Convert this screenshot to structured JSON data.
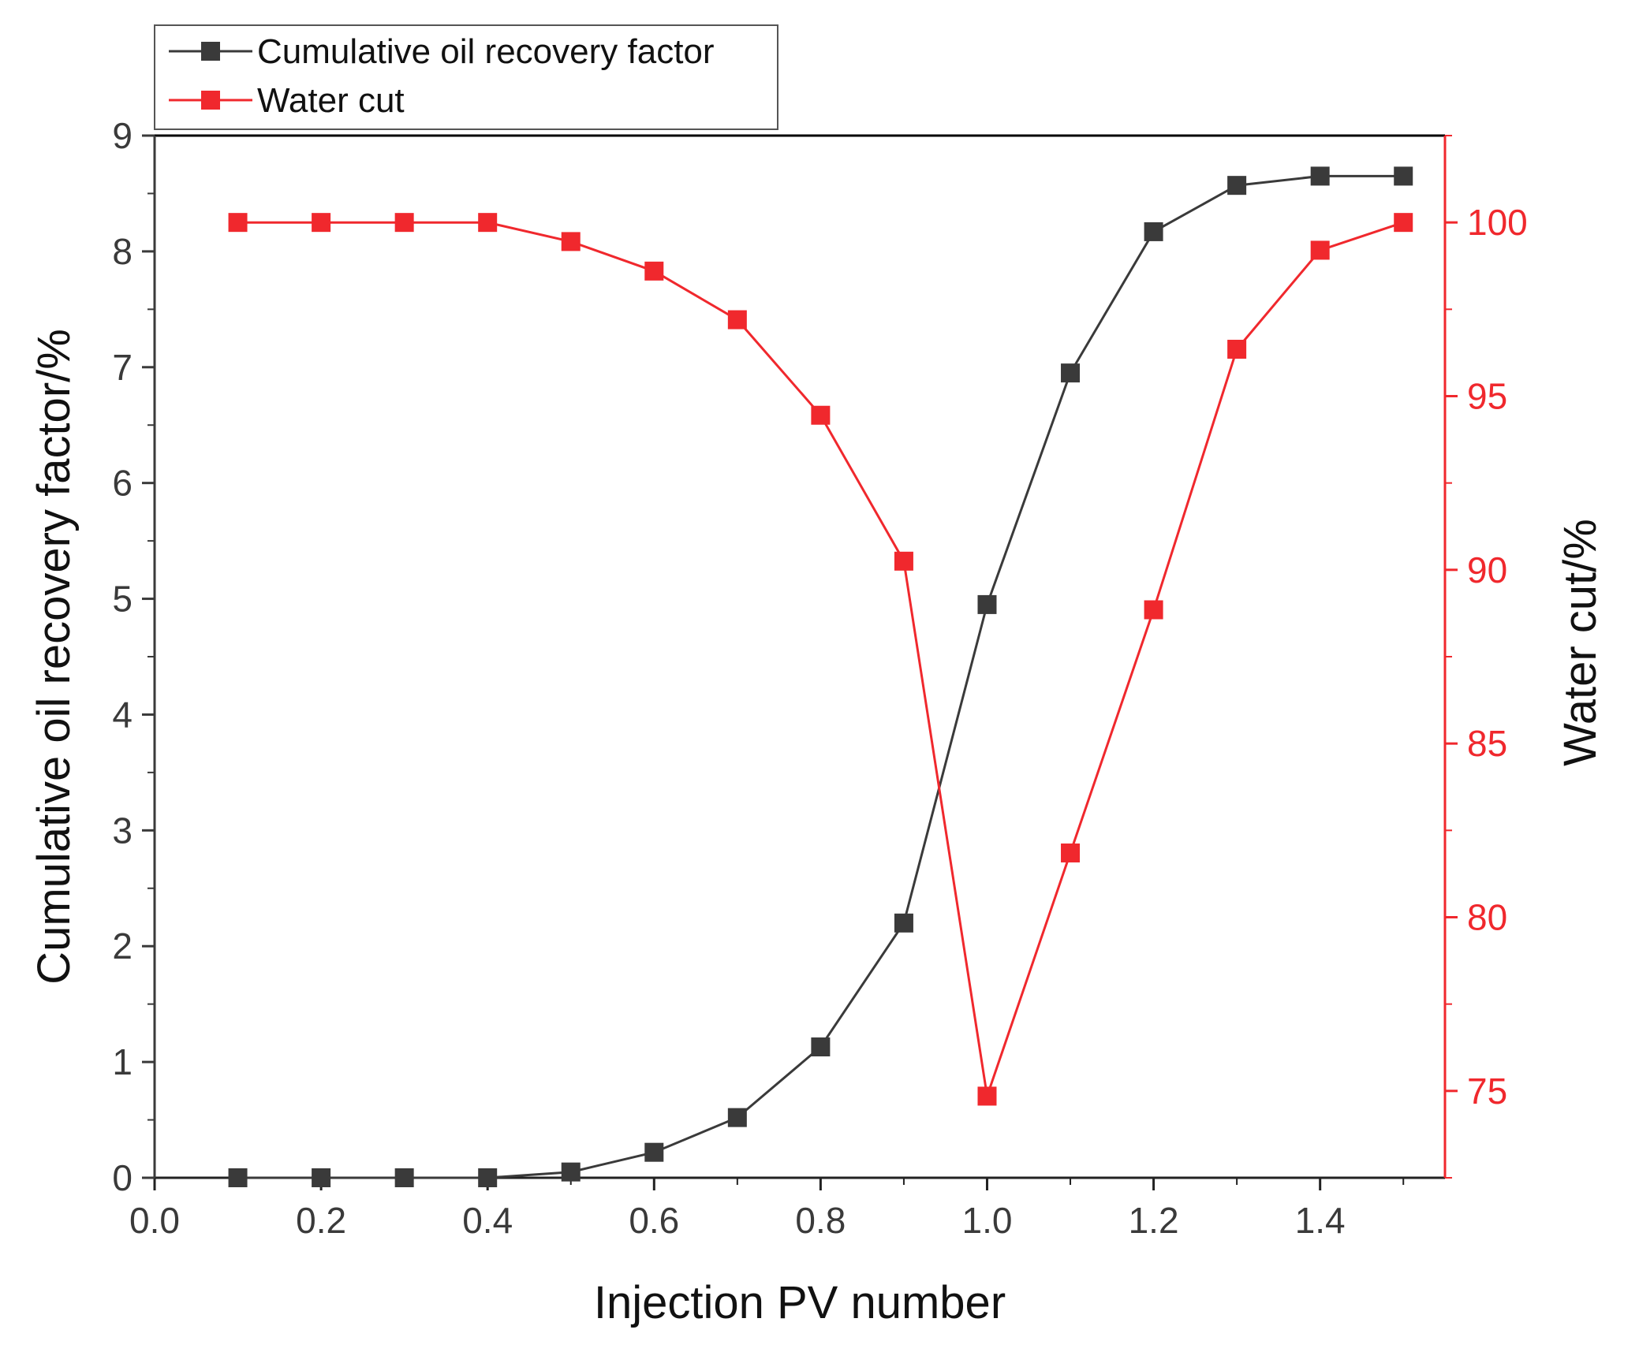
{
  "chart_data": {
    "type": "line",
    "title": "",
    "xlabel": "Injection PV number",
    "ylabel": "Cumulative oil recovery factor/%",
    "y2label": "Water cut/%",
    "xlim": [
      0.0,
      1.55
    ],
    "ylim": [
      0,
      9
    ],
    "y2lim": [
      72.5,
      102.5
    ],
    "xticks": [
      "0.0",
      "0.2",
      "0.4",
      "0.6",
      "0.8",
      "1.0",
      "1.2",
      "1.4"
    ],
    "yticks": [
      "0",
      "1",
      "2",
      "3",
      "4",
      "5",
      "6",
      "7",
      "8",
      "9"
    ],
    "y2ticks": [
      "75",
      "80",
      "85",
      "90",
      "95",
      "100"
    ],
    "x": [
      0.1,
      0.2,
      0.3,
      0.4,
      0.5,
      0.6,
      0.7,
      0.8,
      0.9,
      1.0,
      1.1,
      1.2,
      1.3,
      1.4,
      1.5
    ],
    "series": [
      {
        "name": "Cumulative oil recovery factor",
        "axis": "left",
        "color": "#3a3a3a",
        "values": [
          0.0,
          0.0,
          0.0,
          0.0,
          0.05,
          0.22,
          0.52,
          1.13,
          2.2,
          4.95,
          6.95,
          8.17,
          8.57,
          8.65,
          8.65
        ]
      },
      {
        "name": "Water cut",
        "axis": "right",
        "color": "#f0282d",
        "values": [
          100.0,
          100.0,
          100.0,
          100.0,
          99.45,
          98.6,
          97.2,
          94.45,
          90.25,
          74.85,
          81.85,
          88.85,
          96.35,
          99.2,
          100.0
        ]
      }
    ],
    "legend": "top-left"
  }
}
